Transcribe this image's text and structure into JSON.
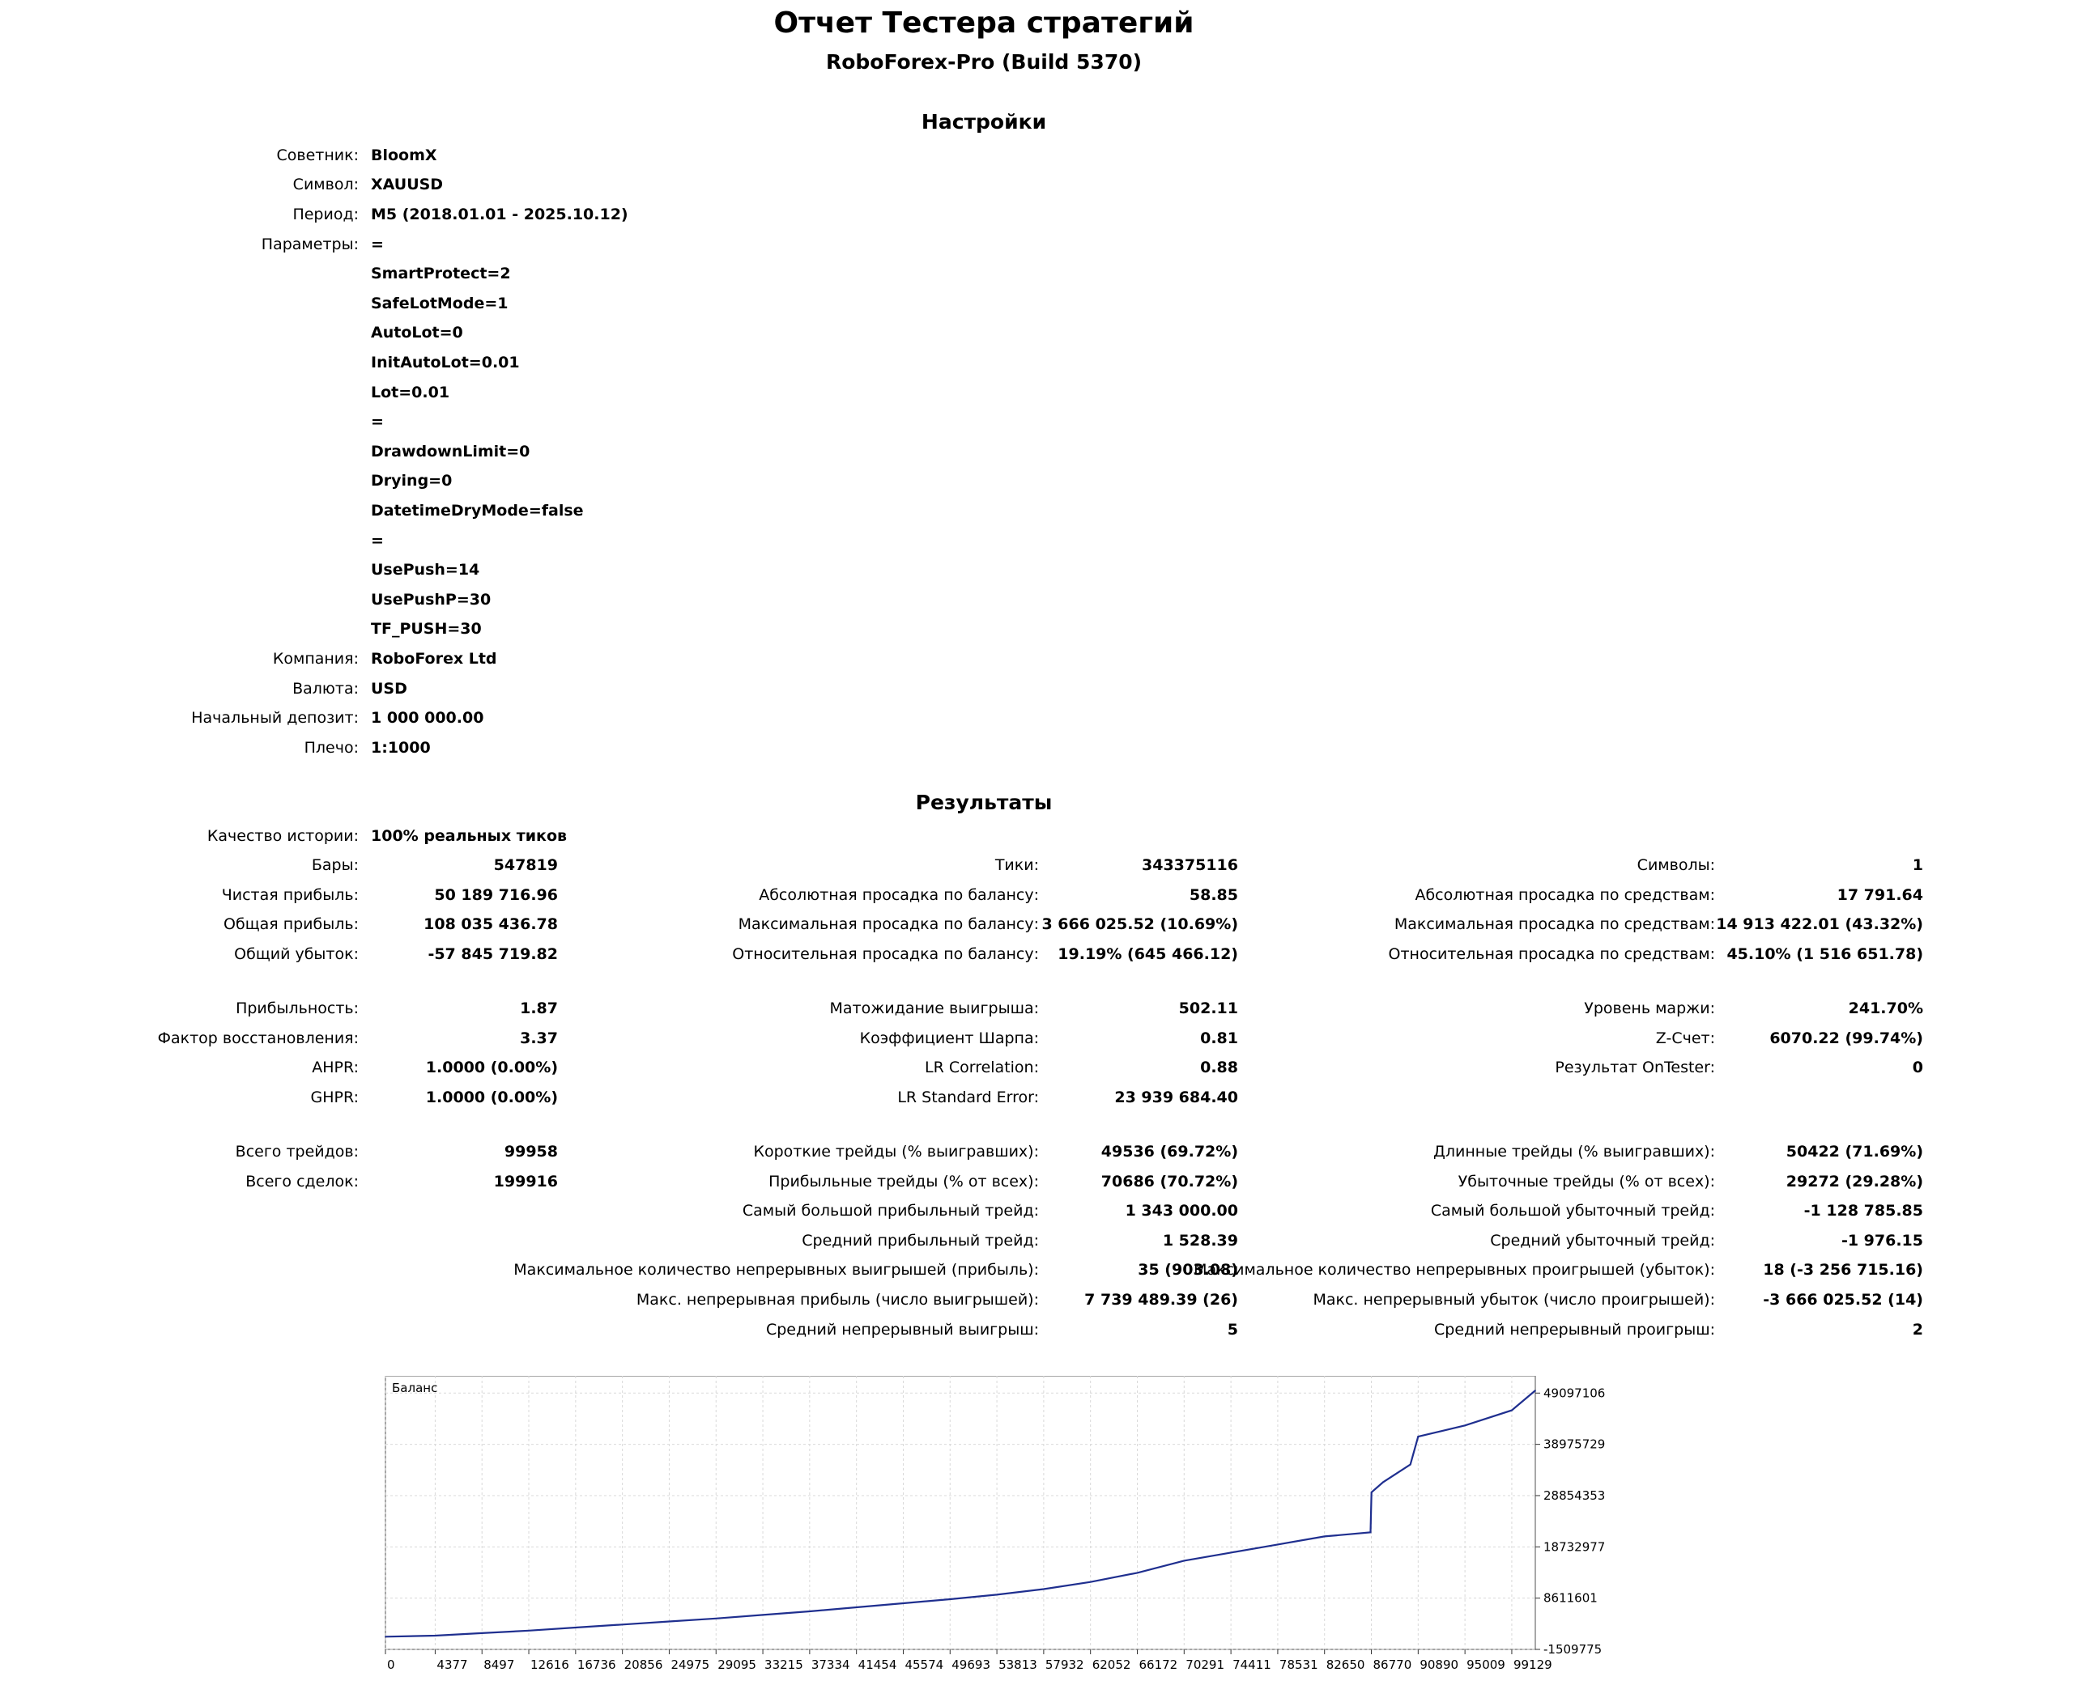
{
  "header": {
    "title": "Отчет Тестера стратегий",
    "subtitle": "RoboForex-Pro (Build 5370)"
  },
  "settings": {
    "heading": "Настройки",
    "expert_label": "Советник:",
    "expert": "BloomX",
    "symbol_label": "Символ:",
    "symbol": "XAUUSD",
    "period_label": "Период:",
    "period": "M5 (2018.01.01 - 2025.10.12)",
    "params_label": "Параметры:",
    "params": [
      "=",
      "SmartProtect=2",
      "SafeLotMode=1",
      "AutoLot=0",
      "InitAutoLot=0.01",
      "Lot=0.01",
      "=",
      "DrawdownLimit=0",
      "Drying=0",
      "DatetimeDryMode=false",
      "=",
      "UsePush=14",
      "UsePushP=30",
      "TF_PUSH=30"
    ],
    "company_label": "Компания:",
    "company": "RoboForex Ltd",
    "currency_label": "Валюта:",
    "currency": "USD",
    "deposit_label": "Начальный депозит:",
    "deposit": "1 000 000.00",
    "leverage_label": "Плечо:",
    "leverage": "1:1000"
  },
  "results": {
    "heading": "Результаты",
    "quality_label": "Качество истории:",
    "quality": "100% реальных тиков",
    "bars_label": "Бары:",
    "bars": "547819",
    "ticks_label": "Тики:",
    "ticks": "343375116",
    "symbols_label": "Символы:",
    "symbols": "1",
    "net_profit_label": "Чистая прибыль:",
    "net_profit": "50 189 716.96",
    "abs_dd_balance_label": "Абсолютная просадка по балансу:",
    "abs_dd_balance": "58.85",
    "abs_dd_equity_label": "Абсолютная просадка по средствам:",
    "abs_dd_equity": "17 791.64",
    "gross_profit_label": "Общая прибыль:",
    "gross_profit": "108 035 436.78",
    "max_dd_balance_label": "Максимальная просадка по балансу:",
    "max_dd_balance": "3 666 025.52 (10.69%)",
    "max_dd_equity_label": "Максимальная просадка по средствам:",
    "max_dd_equity": "14 913 422.01 (43.32%)",
    "gross_loss_label": "Общий убыток:",
    "gross_loss": "-57 845 719.82",
    "rel_dd_balance_label": "Относительная просадка по балансу:",
    "rel_dd_balance": "19.19% (645 466.12)",
    "rel_dd_equity_label": "Относительная просадка по средствам:",
    "rel_dd_equity": "45.10% (1 516 651.78)",
    "profit_factor_label": "Прибыльность:",
    "profit_factor": "1.87",
    "expected_payoff_label": "Матожидание выигрыша:",
    "expected_payoff": "502.11",
    "margin_level_label": "Уровень маржи:",
    "margin_level": "241.70%",
    "recovery_factor_label": "Фактор восстановления:",
    "recovery_factor": "3.37",
    "sharpe_label": "Коэффициент Шарпа:",
    "sharpe": "0.81",
    "zscore_label": "Z-Счет:",
    "zscore": "6070.22 (99.74%)",
    "ahpr_label": "AHPR:",
    "ahpr": "1.0000 (0.00%)",
    "lr_corr_label": "LR Correlation:",
    "lr_corr": "0.88",
    "ontester_label": "Результат OnTester:",
    "ontester": "0",
    "ghpr_label": "GHPR:",
    "ghpr": "1.0000 (0.00%)",
    "lr_err_label": "LR Standard Error:",
    "lr_err": "23 939 684.40",
    "total_trades_label": "Всего трейдов:",
    "total_trades": "99958",
    "short_trades_label": "Короткие трейды (% выигравших):",
    "short_trades": "49536 (69.72%)",
    "long_trades_label": "Длинные трейды (% выигравших):",
    "long_trades": "50422 (71.69%)",
    "total_deals_label": "Всего сделок:",
    "total_deals": "199916",
    "profit_trades_label": "Прибыльные трейды (% от всех):",
    "profit_trades": "70686 (70.72%)",
    "loss_trades_label": "Убыточные трейды (% от всех):",
    "loss_trades": "29272 (29.28%)",
    "largest_profit_label": "Самый большой прибыльный трейд:",
    "largest_profit": "1 343 000.00",
    "largest_loss_label": "Самый большой убыточный трейд:",
    "largest_loss": "-1 128 785.85",
    "avg_profit_label": "Средний прибыльный трейд:",
    "avg_profit": "1 528.39",
    "avg_loss_label": "Средний убыточный трейд:",
    "avg_loss": "-1 976.15",
    "max_cons_wins_label": "Максимальное количество непрерывных выигрышей (прибыль):",
    "max_cons_wins": "35 (903.08)",
    "max_cons_losses_label": "Максимальное количество непрерывных проигрышей (убыток):",
    "max_cons_losses": "18 (-3 256 715.16)",
    "max_cons_profit_label": "Макс. непрерывная прибыль (число выигрышей):",
    "max_cons_profit": "7 739 489.39 (26)",
    "max_cons_loss_label": "Макс. непрерывный убыток (число проигрышей):",
    "max_cons_loss": "-3 666 025.52 (14)",
    "avg_cons_wins_label": "Средний непрерывный выигрыш:",
    "avg_cons_wins": "5",
    "avg_cons_losses_label": "Средний непрерывный проигрыш:",
    "avg_cons_losses": "2"
  },
  "chart_data": {
    "type": "line",
    "title": "Баланс",
    "line_color": "#1f2f8f",
    "grid": true,
    "ylim": [
      -1509775,
      52500000
    ],
    "y_ticks": [
      "-1509775",
      "8611601",
      "18732977",
      "28854353",
      "38975729",
      "49097106"
    ],
    "y_tick_values": [
      -1509775,
      8611601,
      18732977,
      28854353,
      38975729,
      49097106
    ],
    "xlim": [
      0,
      101200
    ],
    "x_ticks": [
      0,
      4377,
      8497,
      12616,
      16736,
      20856,
      24975,
      29095,
      33215,
      37334,
      41454,
      45574,
      49693,
      53813,
      57932,
      62052,
      66172,
      70291,
      74411,
      78531,
      82650,
      86770,
      90890,
      95009,
      99129
    ],
    "series": [
      {
        "x": [
          0,
          4377,
          8497,
          12616,
          16736,
          20856,
          24975,
          29095,
          33215,
          37334,
          41454,
          45574,
          49693,
          53813,
          57932,
          62052,
          66172,
          70291,
          74411,
          78531,
          82650,
          86700,
          86780,
          87800,
          90200,
          90890,
          95009,
          99129,
          101200
        ],
        "y": [
          1000000,
          1200000,
          1700000,
          2200000,
          2800000,
          3400000,
          4000000,
          4600000,
          5300000,
          6000000,
          6800000,
          7600000,
          8400000,
          9300000,
          10400000,
          11800000,
          13600000,
          16000000,
          17600000,
          19200000,
          20800000,
          21600000,
          29500000,
          31500000,
          35000000,
          40500000,
          42700000,
          45700000,
          49600000
        ]
      }
    ]
  }
}
